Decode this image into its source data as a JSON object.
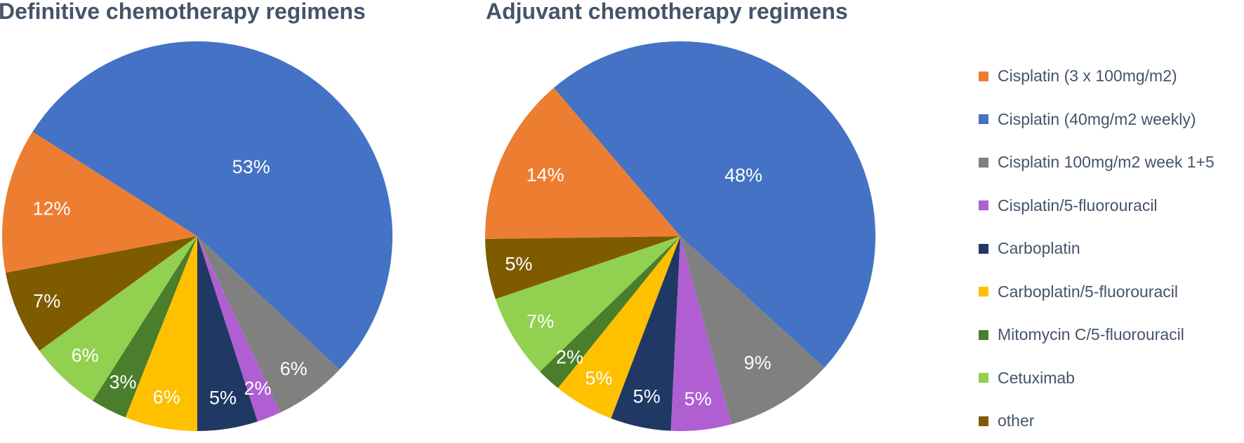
{
  "chart_data": [
    {
      "type": "pie",
      "title": "Definitive chemotherapy regimens",
      "slices": [
        {
          "label": "Cisplatin (40mg/m2 weekly)",
          "value": 53,
          "text": "53%",
          "color": "#4472c4"
        },
        {
          "label": "Cisplatin 100mg/m2 week 1+5",
          "value": 6,
          "text": "6%",
          "color": "#808080"
        },
        {
          "label": "Cisplatin/5-fluorouracil",
          "value": 2,
          "text": "2%",
          "color": "#b05fd3"
        },
        {
          "label": "Carboplatin",
          "value": 5,
          "text": "5%",
          "color": "#1f3864"
        },
        {
          "label": "Carboplatin/5-fluorouracil",
          "value": 6,
          "text": "6%",
          "color": "#ffc000"
        },
        {
          "label": "Mitomycin C/5-fluorouracil",
          "value": 3,
          "text": "3%",
          "color": "#4a7d2c"
        },
        {
          "label": "Cetuximab",
          "value": 6,
          "text": "6%",
          "color": "#92d050"
        },
        {
          "label": "other",
          "value": 7,
          "text": "7%",
          "color": "#7f5b00"
        },
        {
          "label": "Cisplatin (3 x 100mg/m2)",
          "value": 12,
          "text": "12%",
          "color": "#ed7d31"
        }
      ]
    },
    {
      "type": "pie",
      "title": "Adjuvant chemotherapy regimens",
      "slices": [
        {
          "label": "Cisplatin (40mg/m2 weekly)",
          "value": 48,
          "text": "48%",
          "color": "#4472c4"
        },
        {
          "label": "Cisplatin 100mg/m2 week 1+5",
          "value": 9,
          "text": "9%",
          "color": "#808080"
        },
        {
          "label": "Cisplatin/5-fluorouracil",
          "value": 5,
          "text": "5%",
          "color": "#b05fd3"
        },
        {
          "label": "Carboplatin",
          "value": 5,
          "text": "5%",
          "color": "#1f3864"
        },
        {
          "label": "Carboplatin/5-fluorouracil",
          "value": 5,
          "text": "5%",
          "color": "#ffc000"
        },
        {
          "label": "Mitomycin C/5-fluorouracil",
          "value": 2,
          "text": "2%",
          "color": "#4a7d2c"
        },
        {
          "label": "Cetuximab",
          "value": 7,
          "text": "7%",
          "color": "#92d050"
        },
        {
          "label": "other",
          "value": 5,
          "text": "5%",
          "color": "#7f5b00"
        },
        {
          "label": "Cisplatin (3 x 100mg/m2)",
          "value": 14,
          "text": "14%",
          "color": "#ed7d31"
        }
      ]
    }
  ],
  "legend": {
    "position": "right",
    "items": [
      {
        "label": "Cisplatin (3 x 100mg/m2)",
        "color": "#ed7d31"
      },
      {
        "label": "Cisplatin (40mg/m2 weekly)",
        "color": "#4472c4"
      },
      {
        "label": "Cisplatin 100mg/m2 week 1+5",
        "color": "#808080"
      },
      {
        "label": "Cisplatin/5-fluorouracil",
        "color": "#b05fd3"
      },
      {
        "label": "Carboplatin",
        "color": "#1f3864"
      },
      {
        "label": "Carboplatin/5-fluorouracil",
        "color": "#ffc000"
      },
      {
        "label": "Mitomycin C/5-fluorouracil",
        "color": "#4a7d2c"
      },
      {
        "label": "Cetuximab",
        "color": "#92d050"
      },
      {
        "label": "other",
        "color": "#7f5b00"
      }
    ]
  }
}
